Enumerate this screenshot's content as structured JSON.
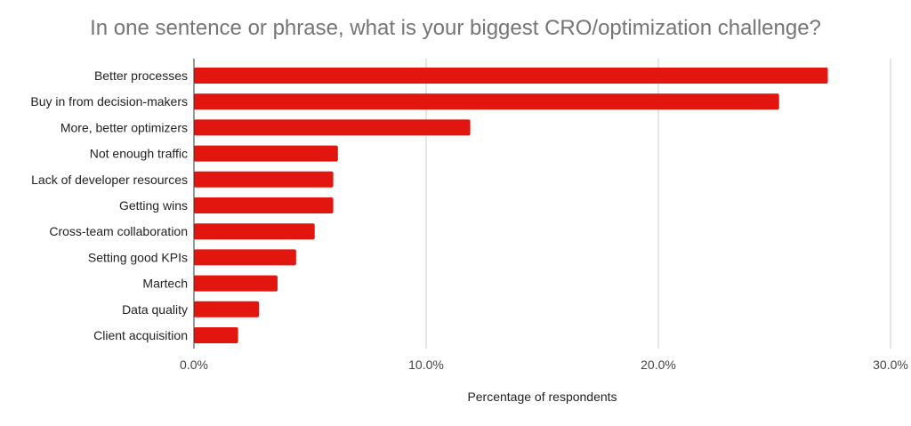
{
  "chart_data": {
    "type": "bar",
    "orientation": "horizontal",
    "title": "In one sentence or phrase, what is your biggest CRO/optimization challenge?",
    "xlabel": "Percentage of respondents",
    "ylabel": "",
    "categories": [
      "Better processes",
      "Buy in from decision-makers",
      "More, better optimizers",
      "Not enough traffic",
      "Lack of developer resources",
      "Getting wins",
      "Cross-team collaboration",
      "Setting good KPIs",
      "Martech",
      "Data quality",
      "Client acquisition"
    ],
    "values": [
      27.3,
      25.2,
      11.9,
      6.2,
      6.0,
      6.0,
      5.2,
      4.4,
      3.6,
      2.8,
      1.9
    ],
    "xlim": [
      0,
      30
    ],
    "ticks": [
      0,
      10,
      20,
      30
    ],
    "tick_labels": [
      "0.0%",
      "10.0%",
      "20.0%",
      "30.0%"
    ],
    "grid": true,
    "legend": "none",
    "colors": {
      "bar": "#e3150f",
      "grid": "#cccccc",
      "axis": "#333333"
    }
  }
}
